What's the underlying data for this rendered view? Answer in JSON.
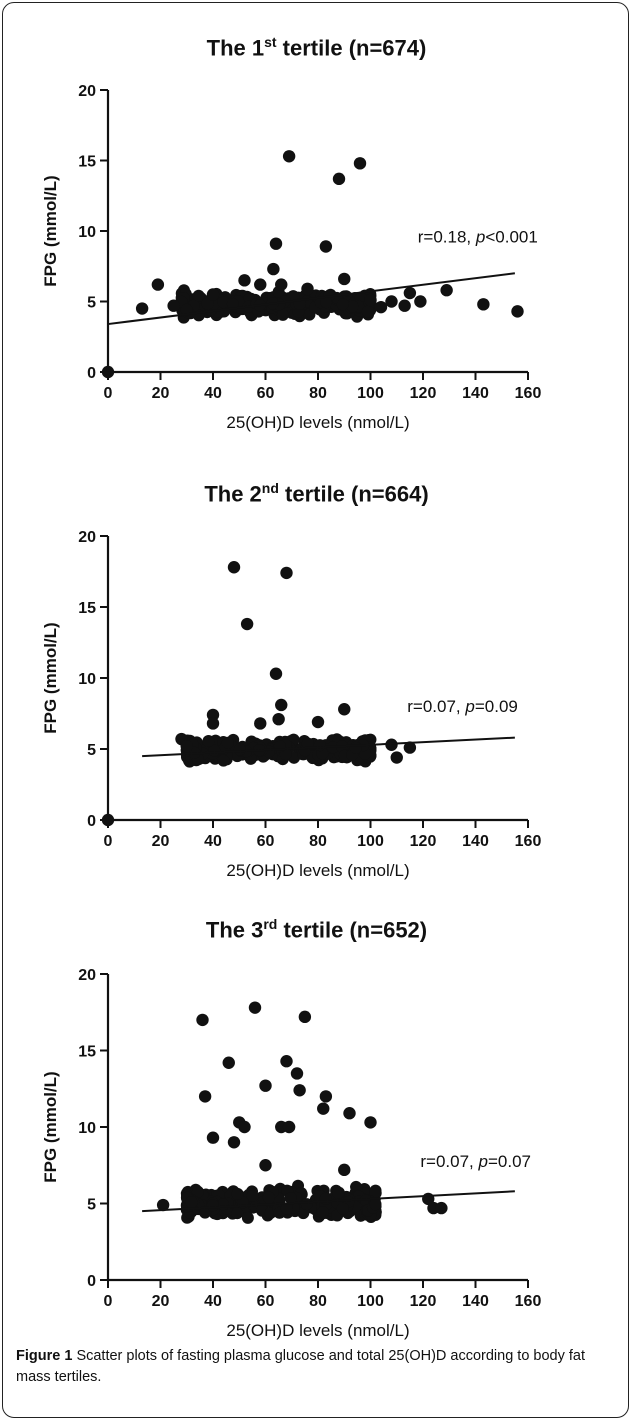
{
  "caption": {
    "label": "Figure 1",
    "text": "Scatter plots of fasting plasma glucose and total 25(OH)D according to body fat mass tertiles."
  },
  "chart_data": [
    {
      "type": "scatter",
      "title_pre": "The 1",
      "title_sup": "st",
      "title_post": " tertile (n=674)",
      "xlabel": "25(OH)D levels (nmol/L)",
      "ylabel": "FPG (mmol/L)",
      "xlim": [
        0,
        160
      ],
      "ylim": [
        0,
        20
      ],
      "xticks": [
        0,
        20,
        40,
        60,
        80,
        100,
        120,
        140,
        160
      ],
      "yticks": [
        0,
        5,
        10,
        15,
        20
      ],
      "annotation": {
        "pre": "r=0.18, ",
        "p": "p",
        "post": "<0.001",
        "x": 118,
        "y": 9.2
      },
      "trend": {
        "x": [
          0,
          155
        ],
        "y": [
          3.4,
          7.0
        ]
      },
      "cluster": {
        "x_range": [
          28,
          100
        ],
        "y_center": 4.8,
        "y_spread": 0.5,
        "n": 320,
        "seed": 11
      },
      "points": [
        [
          0,
          0
        ],
        [
          13,
          4.5
        ],
        [
          19,
          6.2
        ],
        [
          25,
          4.7
        ],
        [
          30,
          4.4
        ],
        [
          40,
          5.5
        ],
        [
          52,
          6.5
        ],
        [
          58,
          6.2
        ],
        [
          63,
          7.3
        ],
        [
          64,
          9.1
        ],
        [
          66,
          6.2
        ],
        [
          69,
          15.3
        ],
        [
          76,
          5.9
        ],
        [
          83,
          8.9
        ],
        [
          88,
          13.7
        ],
        [
          90,
          6.6
        ],
        [
          96,
          14.8
        ],
        [
          100,
          5.1
        ],
        [
          104,
          4.6
        ],
        [
          108,
          5.0
        ],
        [
          113,
          4.7
        ],
        [
          115,
          5.6
        ],
        [
          119,
          5.0
        ],
        [
          129,
          5.8
        ],
        [
          143,
          4.8
        ],
        [
          156,
          4.3
        ]
      ]
    },
    {
      "type": "scatter",
      "title_pre": "The 2",
      "title_sup": "nd",
      "title_post": " tertile (n=664)",
      "xlabel": "25(OH)D levels (nmol/L)",
      "ylabel": "FPG (mmol/L)",
      "xlim": [
        0,
        160
      ],
      "ylim": [
        0,
        20
      ],
      "xticks": [
        0,
        20,
        40,
        60,
        80,
        100,
        120,
        140,
        160
      ],
      "yticks": [
        0,
        5,
        10,
        15,
        20
      ],
      "annotation": {
        "pre": "r=0.07, ",
        "p": "p",
        "post": "=0.09",
        "x": 114,
        "y": 7.6
      },
      "trend": {
        "x": [
          13,
          155
        ],
        "y": [
          4.5,
          5.8
        ]
      },
      "cluster": {
        "x_range": [
          30,
          100
        ],
        "y_center": 4.9,
        "y_spread": 0.5,
        "n": 320,
        "seed": 23
      },
      "points": [
        [
          0,
          0
        ],
        [
          28,
          5.7
        ],
        [
          30,
          5.2
        ],
        [
          40,
          7.4
        ],
        [
          40,
          6.8
        ],
        [
          48,
          17.8
        ],
        [
          53,
          13.8
        ],
        [
          58,
          6.8
        ],
        [
          64,
          10.3
        ],
        [
          65,
          7.1
        ],
        [
          66,
          8.1
        ],
        [
          68,
          17.4
        ],
        [
          80,
          6.9
        ],
        [
          90,
          7.8
        ],
        [
          108,
          5.3
        ],
        [
          110,
          4.4
        ],
        [
          115,
          5.1
        ]
      ]
    },
    {
      "type": "scatter",
      "title_pre": "The 3",
      "title_sup": "rd",
      "title_post": " tertile (n=652)",
      "xlabel": "25(OH)D levels (nmol/L)",
      "ylabel": "FPG (mmol/L)",
      "xlim": [
        0,
        160
      ],
      "ylim": [
        0,
        20
      ],
      "xticks": [
        0,
        20,
        40,
        60,
        80,
        100,
        120,
        140,
        160
      ],
      "yticks": [
        0,
        5,
        10,
        15,
        20
      ],
      "annotation": {
        "pre": "r=0.07, ",
        "p": "p",
        "post": "=0.07",
        "x": 119,
        "y": 7.4
      },
      "trend": {
        "x": [
          13,
          155
        ],
        "y": [
          4.5,
          5.8
        ]
      },
      "cluster": {
        "x_range": [
          30,
          102
        ],
        "y_center": 5.0,
        "y_spread": 0.6,
        "n": 340,
        "seed": 37
      },
      "points": [
        [
          21,
          4.9
        ],
        [
          36,
          17.0
        ],
        [
          37,
          12.0
        ],
        [
          40,
          9.3
        ],
        [
          46,
          14.2
        ],
        [
          48,
          9.0
        ],
        [
          50,
          10.3
        ],
        [
          52,
          10.0
        ],
        [
          56,
          17.8
        ],
        [
          60,
          12.7
        ],
        [
          60,
          7.5
        ],
        [
          66,
          10.0
        ],
        [
          68,
          14.3
        ],
        [
          69,
          10.0
        ],
        [
          72,
          13.5
        ],
        [
          73,
          12.4
        ],
        [
          75,
          17.2
        ],
        [
          82,
          11.2
        ],
        [
          83,
          12.0
        ],
        [
          90,
          7.2
        ],
        [
          92,
          10.9
        ],
        [
          100,
          10.3
        ],
        [
          122,
          5.3
        ],
        [
          124,
          4.7
        ],
        [
          127,
          4.7
        ]
      ]
    }
  ]
}
